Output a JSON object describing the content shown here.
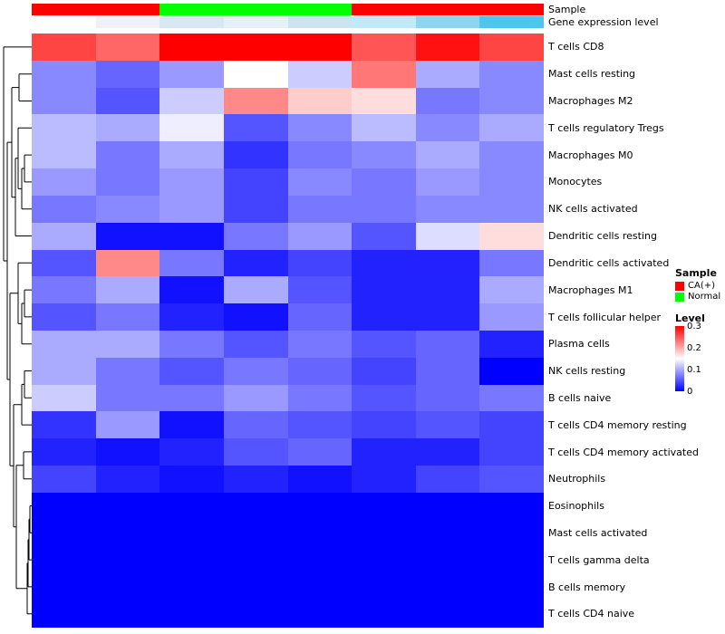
{
  "annotations": {
    "sample_row_label": "Sample",
    "expression_row_label": "Gene expression level",
    "sample_groups": [
      {
        "color": "#FF0000",
        "span": 2
      },
      {
        "color": "#00FF00",
        "span": 3
      },
      {
        "color": "#FF0000",
        "span": 3
      }
    ],
    "expression_colors": [
      "#FEFEFE",
      "#F0F1F6",
      "#D9E7F4",
      "#E7EFF8",
      "#CEE3F2",
      "#C2E9F8",
      "#8FD5F2",
      "#4EC5EF"
    ]
  },
  "legend": {
    "sample_title": "Sample",
    "sample_items": [
      {
        "label": "CA(+)",
        "color": "#FF0000"
      },
      {
        "label": "Normal",
        "color": "#00FF00"
      }
    ],
    "level_title": "Level",
    "level_ticks": [
      "0.3",
      "0.2",
      "0.1",
      "0"
    ],
    "level_colors": {
      "high": "#FF0000",
      "mid": "#FFFFFF",
      "low": "#0000FF"
    }
  },
  "chart_data": {
    "type": "heatmap",
    "title": "",
    "n_columns": 8,
    "rows": [
      "T cells CD8",
      "Mast cells resting",
      "Macrophages M2",
      "T cells regulatory  Tregs",
      "Macrophages M0",
      "Monocytes",
      "NK cells activated",
      "Dendritic cells resting",
      "Dendritic cells activated",
      "Macrophages M1",
      "T cells follicular helper",
      "Plasma cells",
      "NK cells resting",
      "B cells naive",
      "T cells CD4 memory resting",
      "T cells CD4 memory activated",
      "Neutrophils",
      "Eosinophils",
      "Mast cells activated",
      "T cells gamma delta",
      "B cells memory",
      "T cells CD4 naive"
    ],
    "values": [
      [
        0.26,
        0.24,
        0.3,
        0.3,
        0.3,
        0.25,
        0.29,
        0.26
      ],
      [
        0.08,
        0.06,
        0.09,
        0.15,
        0.12,
        0.23,
        0.1,
        0.08
      ],
      [
        0.08,
        0.05,
        0.12,
        0.22,
        0.18,
        0.17,
        0.07,
        0.08
      ],
      [
        0.11,
        0.1,
        0.14,
        0.05,
        0.08,
        0.11,
        0.08,
        0.1
      ],
      [
        0.11,
        0.07,
        0.1,
        0.03,
        0.07,
        0.08,
        0.1,
        0.08
      ],
      [
        0.09,
        0.07,
        0.09,
        0.04,
        0.08,
        0.07,
        0.09,
        0.08
      ],
      [
        0.07,
        0.08,
        0.09,
        0.04,
        0.07,
        0.07,
        0.08,
        0.08
      ],
      [
        0.1,
        0.01,
        0.01,
        0.07,
        0.09,
        0.05,
        0.13,
        0.17
      ],
      [
        0.05,
        0.22,
        0.07,
        0.02,
        0.04,
        0.02,
        0.02,
        0.07
      ],
      [
        0.07,
        0.1,
        0.01,
        0.1,
        0.05,
        0.02,
        0.02,
        0.1
      ],
      [
        0.05,
        0.07,
        0.02,
        0.01,
        0.06,
        0.02,
        0.02,
        0.09
      ],
      [
        0.1,
        0.1,
        0.07,
        0.05,
        0.07,
        0.05,
        0.06,
        0.02
      ],
      [
        0.1,
        0.07,
        0.05,
        0.07,
        0.06,
        0.04,
        0.06,
        0.0
      ],
      [
        0.12,
        0.07,
        0.07,
        0.09,
        0.07,
        0.05,
        0.06,
        0.07
      ],
      [
        0.03,
        0.09,
        0.01,
        0.06,
        0.05,
        0.04,
        0.05,
        0.04
      ],
      [
        0.02,
        0.01,
        0.02,
        0.05,
        0.06,
        0.02,
        0.02,
        0.04
      ],
      [
        0.04,
        0.02,
        0.01,
        0.02,
        0.01,
        0.02,
        0.04,
        0.05
      ],
      [
        0.0,
        0.0,
        0.0,
        0.0,
        0.0,
        0.0,
        0.0,
        0.0
      ],
      [
        0.0,
        0.0,
        0.0,
        0.0,
        0.0,
        0.0,
        0.0,
        0.0
      ],
      [
        0.0,
        0.0,
        0.0,
        0.0,
        0.0,
        0.0,
        0.0,
        0.0
      ],
      [
        0.0,
        0.0,
        0.0,
        0.0,
        0.0,
        0.0,
        0.0,
        0.0
      ],
      [
        0.0,
        0.0,
        0.0,
        0.0,
        0.0,
        0.0,
        0.0,
        0.0
      ]
    ],
    "vmin": 0,
    "vmax": 0.3,
    "colormap": "blue-white-red",
    "legend_position": "right",
    "row_dendrogram": true,
    "column_labels_visible": false
  }
}
